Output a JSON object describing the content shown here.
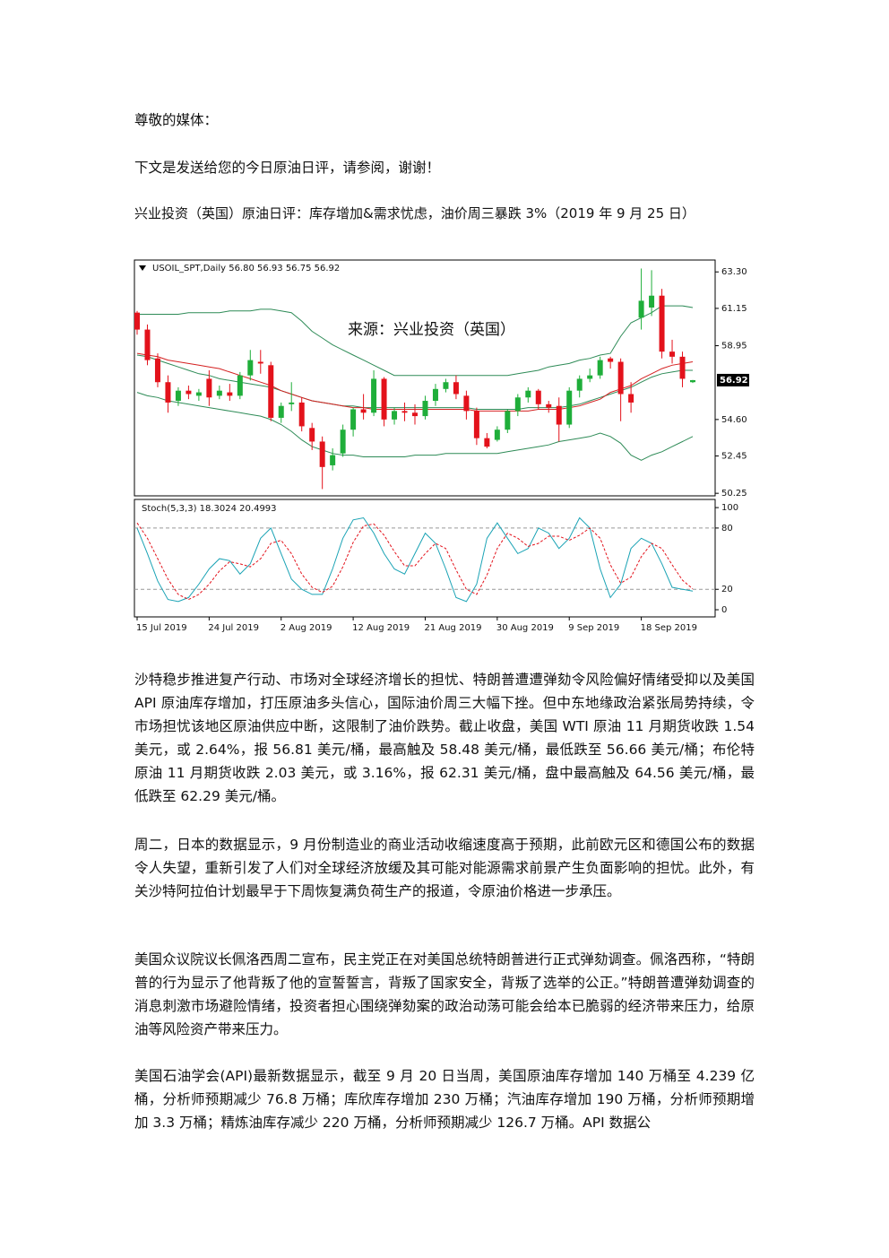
{
  "greeting": "尊敬的媒体：",
  "intro": "下文是发送给您的今日原油日评，请参阅，谢谢！",
  "headline": "兴业投资（英国）原油日评：库存增加&需求忧虑，油价周三暴跌 3%（2019 年 9 月 25 日）",
  "chart_data": [
    {
      "type": "candlestick",
      "title": "USOIL_SPT,Daily  56.80 56.93 56.75 56.92",
      "annotation": "来源：兴业投资（英国）",
      "categories": [
        "15 Jul 2019",
        null,
        null,
        null,
        null,
        null,
        null,
        "24 Jul 2019",
        null,
        null,
        null,
        null,
        null,
        null,
        "2 Aug 2019",
        null,
        null,
        null,
        null,
        null,
        null,
        "12 Aug 2019",
        null,
        null,
        null,
        null,
        null,
        null,
        "21 Aug 2019",
        null,
        null,
        null,
        null,
        null,
        null,
        "30 Aug 2019",
        null,
        null,
        null,
        null,
        null,
        null,
        "9 Sep 2019",
        null,
        null,
        null,
        null,
        null,
        null,
        "18 Sep 2019",
        null,
        null,
        null,
        null,
        null
      ],
      "open": [
        60.9,
        59.9,
        58.2,
        56.8,
        55.7,
        56.3,
        56.0,
        57.0,
        56.0,
        56.2,
        56.0,
        57.2,
        58.0,
        57.8,
        54.7,
        55.5,
        55.6,
        54.1,
        53.3,
        51.9,
        52.6,
        54.0,
        55.2,
        55.0,
        57.0,
        54.6,
        55.1,
        55.0,
        54.8,
        55.7,
        56.4,
        56.8,
        56.0,
        55.1,
        53.5,
        53.4,
        54.0,
        55.1,
        55.9,
        56.3,
        55.5,
        55.4,
        54.3,
        56.3,
        57.0,
        57.2,
        58.2,
        58.0,
        56.1,
        60.6,
        61.2,
        61.9,
        58.6,
        58.3,
        56.8
      ],
      "high": [
        61.0,
        60.2,
        58.5,
        57.2,
        56.5,
        56.6,
        56.4,
        57.5,
        56.6,
        56.7,
        57.4,
        58.7,
        58.7,
        58.0,
        55.6,
        56.8,
        55.9,
        54.4,
        53.6,
        52.9,
        54.3,
        55.3,
        56.1,
        57.5,
        57.1,
        55.3,
        55.6,
        55.5,
        56.0,
        56.7,
        57.0,
        57.2,
        56.3,
        55.3,
        53.8,
        54.2,
        55.2,
        56.1,
        56.5,
        56.4,
        55.7,
        55.9,
        56.5,
        57.2,
        57.6,
        58.3,
        58.3,
        58.2,
        56.8,
        63.5,
        63.4,
        62.3,
        59.3,
        58.6,
        56.93
      ],
      "low": [
        59.6,
        57.8,
        56.5,
        55.0,
        55.4,
        55.8,
        55.7,
        55.4,
        55.8,
        55.7,
        55.8,
        56.9,
        57.3,
        54.5,
        54.4,
        55.1,
        53.9,
        52.8,
        50.5,
        51.6,
        52.4,
        53.6,
        54.6,
        54.8,
        54.2,
        54.3,
        54.5,
        54.3,
        54.6,
        55.4,
        56.2,
        55.8,
        54.6,
        53.1,
        52.9,
        53.3,
        53.8,
        54.8,
        55.6,
        55.2,
        55.0,
        53.3,
        54.1,
        55.9,
        56.8,
        57.0,
        57.6,
        54.5,
        55.0,
        59.9,
        60.7,
        58.2,
        57.9,
        56.5,
        56.75
      ],
      "close": [
        59.9,
        58.1,
        56.8,
        55.6,
        56.3,
        56.1,
        56.2,
        55.9,
        56.3,
        56.0,
        57.2,
        58.1,
        57.9,
        54.7,
        55.4,
        55.6,
        54.2,
        53.3,
        51.8,
        52.5,
        54.0,
        55.2,
        55.0,
        57.0,
        54.6,
        55.1,
        55.0,
        54.8,
        55.7,
        56.4,
        56.8,
        56.1,
        55.1,
        53.5,
        53.0,
        54.0,
        55.1,
        55.9,
        56.3,
        55.5,
        55.3,
        54.3,
        56.3,
        57.0,
        57.2,
        58.1,
        58.0,
        56.1,
        55.6,
        61.6,
        61.9,
        58.6,
        58.3,
        57.0,
        56.92
      ],
      "up_color": "#1fae3a",
      "down_color": "#e3121b",
      "overlays": [
        {
          "color": "#2e8b57",
          "values": [
            60.8,
            60.8,
            60.8,
            60.8,
            60.8,
            60.9,
            60.9,
            60.9,
            60.9,
            61.0,
            61.0,
            61.0,
            61.1,
            61.1,
            61.0,
            60.9,
            60.4,
            59.8,
            59.4,
            59.0,
            58.7,
            58.4,
            58.1,
            57.8,
            57.5,
            57.2,
            57.2,
            57.2,
            57.2,
            57.2,
            57.2,
            57.2,
            57.2,
            57.2,
            57.2,
            57.2,
            57.2,
            57.3,
            57.4,
            57.5,
            57.7,
            57.8,
            57.9,
            58.1,
            58.2,
            58.4,
            58.5,
            59.5,
            60.3,
            60.6,
            60.9,
            61.3,
            61.3,
            61.3,
            61.2
          ]
        },
        {
          "color": "#2e8b57",
          "values": [
            58.4,
            58.3,
            58.1,
            57.9,
            57.7,
            57.5,
            57.3,
            57.2,
            57.0,
            56.9,
            56.8,
            56.7,
            56.6,
            56.5,
            56.3,
            56.1,
            55.9,
            55.7,
            55.6,
            55.5,
            55.4,
            55.4,
            55.3,
            55.3,
            55.3,
            55.3,
            55.3,
            55.3,
            55.3,
            55.3,
            55.3,
            55.3,
            55.3,
            55.2,
            55.2,
            55.2,
            55.2,
            55.2,
            55.3,
            55.3,
            55.3,
            55.3,
            55.4,
            55.5,
            55.7,
            55.9,
            56.1,
            56.3,
            56.5,
            56.8,
            57.1,
            57.3,
            57.4,
            57.5,
            57.5
          ]
        },
        {
          "color": "#2e8b57",
          "values": [
            56.2,
            56.0,
            55.9,
            55.7,
            55.6,
            55.5,
            55.4,
            55.3,
            55.2,
            55.1,
            55.0,
            54.9,
            54.8,
            54.6,
            54.3,
            53.9,
            53.4,
            53.0,
            52.8,
            52.6,
            52.5,
            52.5,
            52.4,
            52.4,
            52.4,
            52.4,
            52.4,
            52.5,
            52.5,
            52.5,
            52.6,
            52.6,
            52.6,
            52.6,
            52.6,
            52.6,
            52.7,
            52.8,
            52.9,
            53.0,
            53.1,
            53.3,
            53.4,
            53.5,
            53.6,
            53.8,
            53.6,
            53.2,
            52.5,
            52.2,
            52.5,
            52.7,
            53.0,
            53.3,
            53.6
          ]
        },
        {
          "color": "#d42020",
          "values": [
            58.5,
            58.4,
            58.3,
            58.1,
            58.0,
            57.9,
            57.8,
            57.7,
            57.6,
            57.4,
            57.2,
            57.0,
            56.8,
            56.6,
            56.3,
            56.1,
            55.9,
            55.7,
            55.6,
            55.5,
            55.4,
            55.3,
            55.3,
            55.2,
            55.2,
            55.2,
            55.2,
            55.2,
            55.2,
            55.2,
            55.2,
            55.2,
            55.2,
            55.1,
            55.1,
            55.1,
            55.1,
            55.1,
            55.1,
            55.2,
            55.2,
            55.2,
            55.3,
            55.4,
            55.6,
            55.8,
            56.2,
            56.4,
            56.6,
            57.0,
            57.3,
            57.6,
            57.8,
            57.9,
            58.0
          ]
        }
      ],
      "ylim": [
        50.1,
        64.0
      ],
      "yticks": [
        {
          "value": 63.3,
          "label": "63.30"
        },
        61.15,
        58.95,
        {
          "value": 54.6,
          "label": "54.60"
        },
        52.45,
        50.25
      ],
      "price_marker": 56.92
    },
    {
      "type": "line",
      "title": "Stoch(5,3,3) 18.3024 20.4993",
      "series": [
        {
          "color": "#1aa3b5",
          "dashed": false,
          "values": [
            80,
            55,
            28,
            10,
            8,
            12,
            25,
            40,
            50,
            48,
            35,
            45,
            70,
            80,
            55,
            30,
            20,
            15,
            15,
            40,
            70,
            88,
            90,
            75,
            55,
            40,
            35,
            55,
            75,
            65,
            40,
            12,
            8,
            25,
            70,
            85,
            70,
            55,
            60,
            80,
            75,
            60,
            70,
            90,
            80,
            40,
            12,
            25,
            60,
            70,
            65,
            45,
            22,
            20,
            18.3024
          ]
        },
        {
          "color": "#e3121b",
          "dashed": true,
          "values": [
            85,
            70,
            50,
            30,
            15,
            10,
            15,
            25,
            38,
            47,
            45,
            42,
            50,
            65,
            68,
            55,
            35,
            22,
            17,
            23,
            42,
            66,
            82,
            84,
            73,
            57,
            43,
            43,
            55,
            65,
            60,
            39,
            20,
            15,
            34,
            60,
            75,
            70,
            62,
            65,
            72,
            72,
            68,
            73,
            80,
            70,
            44,
            26,
            32,
            52,
            65,
            60,
            44,
            29,
            20.4993
          ]
        }
      ],
      "ylim": [
        -7,
        108
      ],
      "yticks": [
        100,
        80,
        20,
        0
      ],
      "reference_lines": [
        80,
        20
      ]
    }
  ],
  "paragraphs": [
    "沙特稳步推进复产行动、市场对全球经济增长的担忧、特朗普遭遭弹劾令风险偏好情绪受抑以及美国 API 原油库存增加，打压原油多头信心，国际油价周三大幅下挫。但中东地缘政治紧张局势持续，令市场担忧该地区原油供应中断，这限制了油价跌势。截止收盘，美国 WTI 原油 11 月期货收跌 1.54 美元，或 2.64%，报 56.81 美元/桶，最高触及 58.48 美元/桶，最低跌至 56.66 美元/桶；布伦特原油 11 月期货收跌 2.03 美元，或 3.16%，报 62.31 美元/桶，盘中最高触及 64.56 美元/桶，最低跌至 62.29 美元/桶。",
    "周二，日本的数据显示，9 月份制造业的商业活动收缩速度高于预期，此前欧元区和德国公布的数据令人失望，重新引发了人们对全球经济放缓及其可能对能源需求前景产生负面影响的担忧。此外，有关沙特阿拉伯计划最早于下周恢复满负荷生产的报道，令原油价格进一步承压。",
    "美国众议院议长佩洛西周二宣布，民主党正在对美国总统特朗普进行正式弹劾调查。佩洛西称，“特朗普的行为显示了他背叛了他的宣誓誓言，背叛了国家安全，背叛了选举的公正。”特朗普遭弹劾调查的消息刺激市场避险情绪，投资者担心围绕弹劾案的政治动荡可能会给本已脆弱的经济带来压力，给原油等风险资产带来压力。",
    "美国石油学会(API)最新数据显示，截至 9 月 20 日当周，美国原油库存增加 140 万桶至 4.239 亿桶，分析师预期减少 76.8 万桶；库欣库存增加 230 万桶；汽油库存增加 190 万桶，分析师预期增加 3.3 万桶；精炼油库存减少 220 万桶，分析师预期减少 126.7 万桶。API 数据公"
  ]
}
